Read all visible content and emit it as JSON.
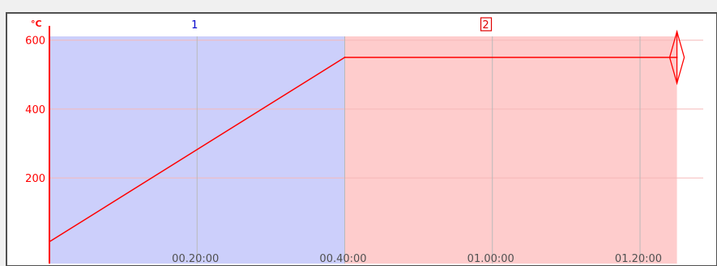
{
  "chart_data": {
    "type": "line",
    "title": "",
    "y_unit": "°C",
    "y_range": [
      0,
      640
    ],
    "y_ticks": [
      {
        "value": 200,
        "label": "200"
      },
      {
        "value": 400,
        "label": "400"
      },
      {
        "value": 600,
        "label": "600"
      }
    ],
    "x_range_minutes": [
      0,
      86
    ],
    "x_ticks": [
      {
        "minutes": 20,
        "label": "00.20:00"
      },
      {
        "minutes": 40,
        "label": "00.40:00"
      },
      {
        "minutes": 60,
        "label": "01.00:00"
      },
      {
        "minutes": 80,
        "label": "01.20:00"
      }
    ],
    "segments": [
      {
        "label": "1",
        "start_minutes": 0,
        "end_minutes": 40,
        "color": "#cccffb",
        "label_color": "#0000cc",
        "boxed": false
      },
      {
        "label": "2",
        "start_minutes": 40,
        "end_minutes": 85,
        "color": "#fecccc",
        "label_color": "#e00000",
        "boxed": true
      }
    ],
    "series": [
      {
        "color": "#ff0000",
        "points": [
          {
            "minutes": 0,
            "value": 15
          },
          {
            "minutes": 40,
            "value": 550
          },
          {
            "minutes": 85,
            "value": 550
          }
        ]
      }
    ],
    "grid": true,
    "colors": {
      "axis": "#ff0000",
      "grid_horizontal": "#f5b9b9",
      "grid_vertical": "#b9b9b9",
      "plot_background": "#ffffff",
      "frame": "#505050",
      "window_background": "#f0f0f0"
    },
    "end_marker": {
      "icon": "diamond-resize-handle-icon",
      "value": 550
    }
  }
}
